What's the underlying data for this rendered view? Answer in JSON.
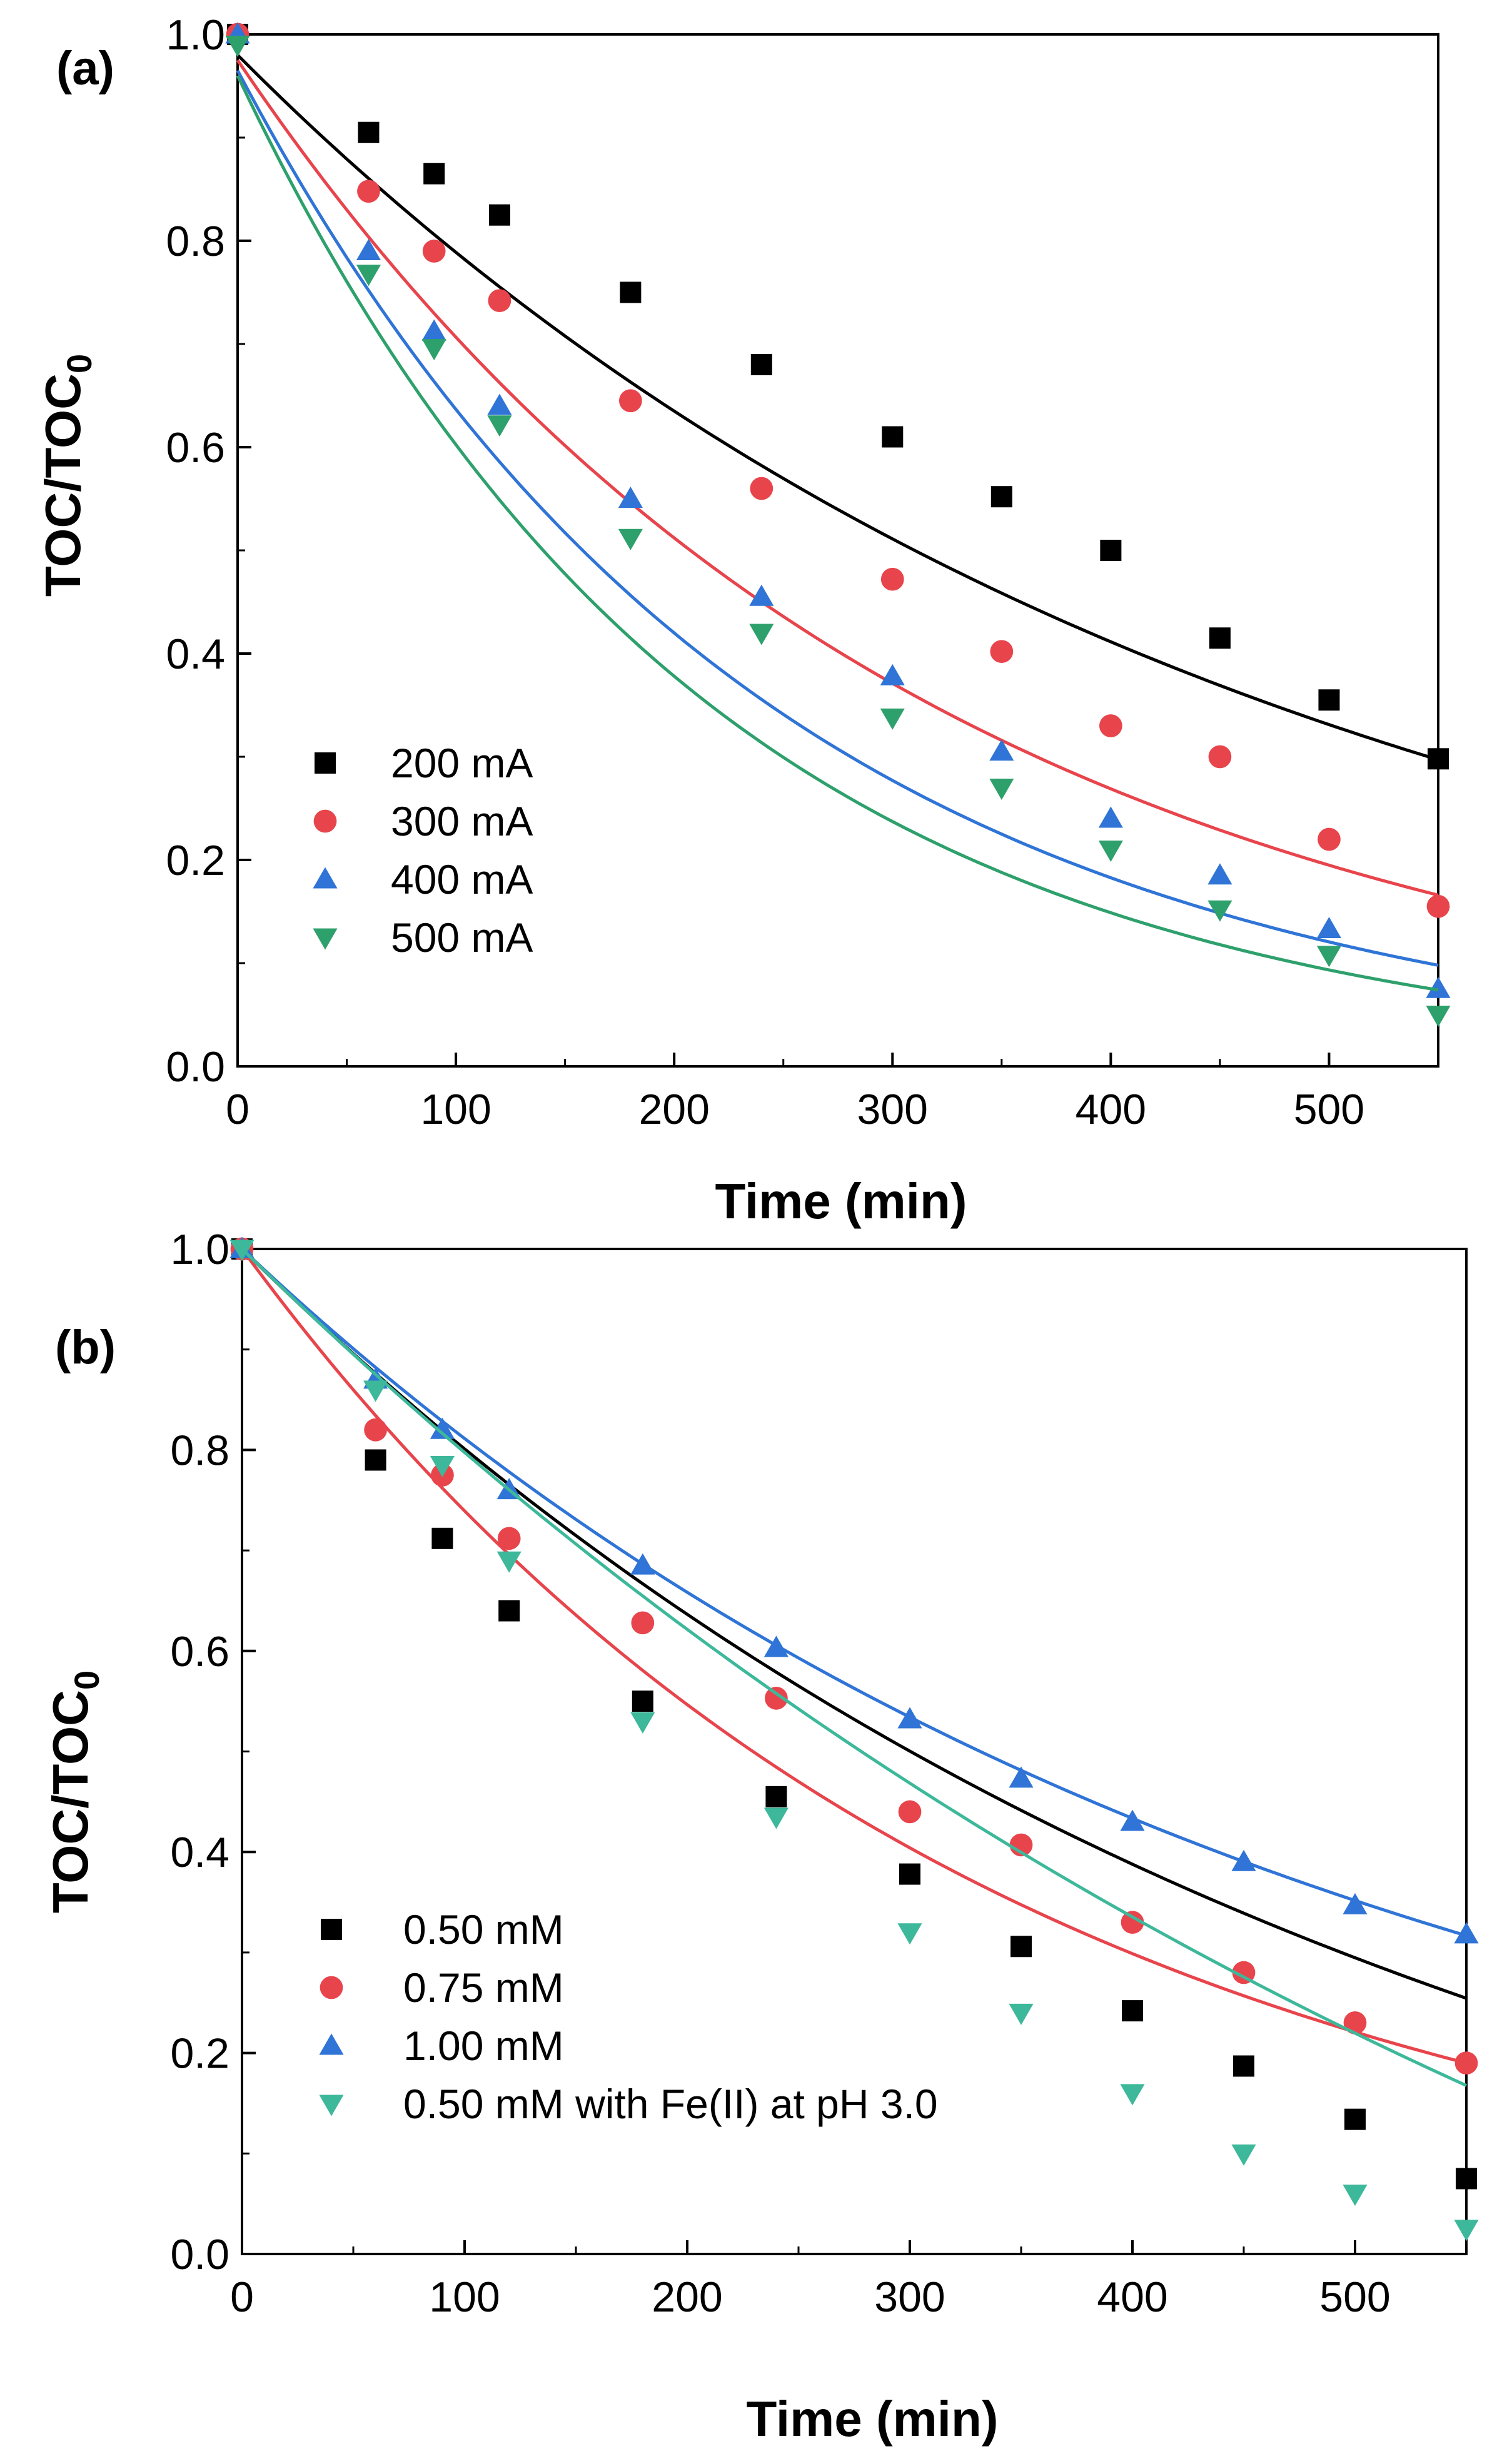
{
  "chart_data": [
    {
      "type": "scatter",
      "panel_label": "(a)",
      "xlabel": "Time (min)",
      "ylabel": "TOC/TOC",
      "ylabel_subscript": "0",
      "xlim": [
        0,
        550
      ],
      "ylim": [
        0,
        1.0
      ],
      "xticks": [
        0,
        100,
        200,
        300,
        400,
        500
      ],
      "xtick_labels": [
        "0",
        "100",
        "200",
        "300",
        "400",
        "500"
      ],
      "yticks": [
        0,
        0.2,
        0.4,
        0.6,
        0.8,
        1.0
      ],
      "ytick_labels": [
        "0.0",
        "0.2",
        "0.4",
        "0.6",
        "0.8",
        "1.0"
      ],
      "legend_position": "bottom-left",
      "series": [
        {
          "name": "200 mA",
          "color": "#000000",
          "marker": "square",
          "x": [
            0,
            60,
            90,
            120,
            180,
            240,
            300,
            350,
            400,
            450,
            500,
            550
          ],
          "y": [
            1.0,
            0.905,
            0.865,
            0.825,
            0.75,
            0.68,
            0.61,
            0.552,
            0.5,
            0.415,
            0.355,
            0.298
          ],
          "fit": {
            "model": "exp",
            "a": 0.98,
            "k": 0.00217
          }
        },
        {
          "name": "300 mA",
          "color": "#e8444c",
          "marker": "circle",
          "x": [
            0,
            60,
            90,
            120,
            180,
            240,
            300,
            350,
            400,
            450,
            500,
            550
          ],
          "y": [
            1.0,
            0.848,
            0.79,
            0.742,
            0.645,
            0.56,
            0.472,
            0.402,
            0.33,
            0.3,
            0.22,
            0.155
          ],
          "fit": {
            "model": "exp",
            "a": 0.975,
            "k": 0.00322
          }
        },
        {
          "name": "400 mA",
          "color": "#2f74d6",
          "marker": "triangle-up",
          "x": [
            0,
            60,
            90,
            120,
            180,
            240,
            300,
            350,
            400,
            450,
            500,
            550
          ],
          "y": [
            1.0,
            0.79,
            0.712,
            0.64,
            0.55,
            0.455,
            0.378,
            0.305,
            0.24,
            0.185,
            0.133,
            0.075
          ],
          "fit": {
            "model": "exp",
            "a": 0.965,
            "k": 0.00416
          }
        },
        {
          "name": "500 mA",
          "color": "#2ea06c",
          "marker": "triangle-down",
          "x": [
            0,
            60,
            90,
            120,
            180,
            240,
            300,
            350,
            400,
            450,
            500,
            550
          ],
          "y": [
            0.99,
            0.768,
            0.696,
            0.622,
            0.512,
            0.42,
            0.338,
            0.27,
            0.21,
            0.152,
            0.108,
            0.05
          ],
          "fit": {
            "model": "exp",
            "a": 0.96,
            "k": 0.00466
          }
        }
      ]
    },
    {
      "type": "scatter",
      "panel_label": "(b)",
      "xlabel": "Time (min)",
      "ylabel": "TOC/TOC",
      "ylabel_subscript": "0",
      "xlim": [
        0,
        550
      ],
      "ylim": [
        0,
        1.0
      ],
      "xticks": [
        0,
        100,
        200,
        300,
        400,
        500
      ],
      "xtick_labels": [
        "0",
        "100",
        "200",
        "300",
        "400",
        "500"
      ],
      "yticks": [
        0,
        0.2,
        0.4,
        0.6,
        0.8,
        1.0
      ],
      "ytick_labels": [
        "0.0",
        "0.2",
        "0.4",
        "0.6",
        "0.8",
        "1.0"
      ],
      "legend_position": "bottom-left",
      "series": [
        {
          "name": "0.50 mM",
          "color": "#000000",
          "marker": "square",
          "x": [
            0,
            60,
            90,
            120,
            180,
            240,
            300,
            350,
            400,
            450,
            500,
            550
          ],
          "y": [
            1.0,
            0.79,
            0.712,
            0.64,
            0.55,
            0.455,
            0.378,
            0.306,
            0.242,
            0.187,
            0.134,
            0.075
          ],
          "fit": {
            "model": "exp_offset",
            "a": 1.15,
            "k": 0.0019,
            "c": -0.15
          }
        },
        {
          "name": "0.75 mM",
          "color": "#e8444c",
          "marker": "circle",
          "x": [
            0,
            60,
            90,
            120,
            180,
            240,
            300,
            350,
            400,
            450,
            500,
            550
          ],
          "y": [
            1.0,
            0.82,
            0.775,
            0.712,
            0.628,
            0.553,
            0.44,
            0.407,
            0.33,
            0.28,
            0.23,
            0.19
          ],
          "fit": {
            "model": "exp",
            "a": 1.0,
            "k": 0.00302
          }
        },
        {
          "name": "1.00 mM",
          "color": "#2f74d6",
          "marker": "triangle-up",
          "x": [
            0,
            60,
            90,
            120,
            180,
            240,
            300,
            350,
            400,
            450,
            500,
            550
          ],
          "y": [
            1.0,
            0.87,
            0.82,
            0.76,
            0.685,
            0.603,
            0.532,
            0.473,
            0.43,
            0.39,
            0.347,
            0.318
          ],
          "fit": {
            "model": "exp",
            "a": 1.0,
            "k": 0.00209
          }
        },
        {
          "name": "0.50 mM with Fe(II) at pH 3.0",
          "color": "#3db89a",
          "marker": "triangle-down",
          "x": [
            0,
            60,
            90,
            120,
            180,
            240,
            300,
            350,
            400,
            450,
            500,
            550
          ],
          "y": [
            1.0,
            0.86,
            0.785,
            0.69,
            0.53,
            0.435,
            0.32,
            0.24,
            0.16,
            0.1,
            0.06,
            0.025
          ],
          "fit": {
            "model": "exp_offset",
            "a": 1.55,
            "k": 0.0014,
            "c": -0.55
          }
        }
      ]
    }
  ]
}
